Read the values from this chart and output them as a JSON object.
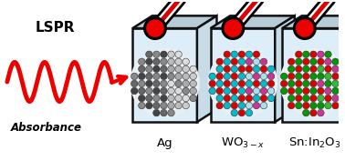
{
  "bg_color": "#ffffff",
  "lspr_text": "LSPR",
  "absorbance_text": "Absorbance",
  "labels": [
    "Ag",
    "WO$_{3-x}$",
    "Sn:In$_2$O$_3$"
  ],
  "wave_color": "#ee0000",
  "thermometer_red": "#dd0000",
  "bulb_color": "#ee0000",
  "box_front_color": "#ddeef8",
  "box_top_color": "#b8ccd8",
  "box_right_color": "#c8dce8",
  "box_outline": "#111111",
  "ag_colors_dark": [
    "#444444",
    "#555555",
    "#666666"
  ],
  "ag_colors_light": [
    "#999999",
    "#aaaaaa",
    "#bbbbbb",
    "#cccccc",
    "#dddddd"
  ],
  "wo_colors": [
    "#dd0000",
    "#cc3399",
    "#00bbcc",
    "#88ddee"
  ],
  "sn_colors": [
    "#dd0000",
    "#cc3399",
    "#009900",
    "#33bb33"
  ]
}
